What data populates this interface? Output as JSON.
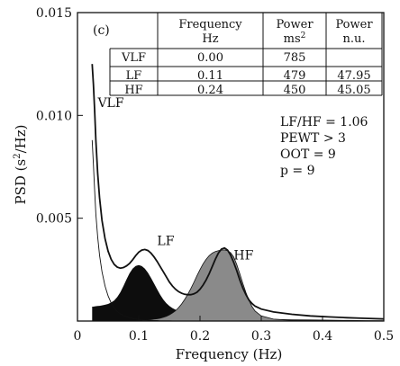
{
  "chart_data": {
    "type": "area",
    "panel_label": "(c)",
    "xlabel": "Frequency (Hz)",
    "ylabel": "PSD (s",
    "ylabel_sup": "2",
    "ylabel_tail": "/Hz)",
    "xlim": [
      0,
      0.5
    ],
    "ylim": [
      0,
      0.015
    ],
    "x_ticks": [
      {
        "value": 0,
        "label": "0"
      },
      {
        "value": 0.1,
        "label": "0.1"
      },
      {
        "value": 0.2,
        "label": "0.2"
      },
      {
        "value": 0.3,
        "label": "0.3"
      },
      {
        "value": 0.4,
        "label": "0.4"
      },
      {
        "value": 0.5,
        "label": "0.5"
      }
    ],
    "y_ticks": [
      {
        "value": 0.005,
        "label": "0.005"
      },
      {
        "value": 0.01,
        "label": "0.010"
      },
      {
        "value": 0.015,
        "label": "0.015"
      }
    ],
    "x": [
      0.024,
      0.026,
      0.028,
      0.03,
      0.033,
      0.036,
      0.04,
      0.045,
      0.05,
      0.055,
      0.06,
      0.065,
      0.07,
      0.075,
      0.08,
      0.085,
      0.09,
      0.095,
      0.1,
      0.105,
      0.11,
      0.115,
      0.12,
      0.125,
      0.13,
      0.135,
      0.14,
      0.145,
      0.15,
      0.155,
      0.16,
      0.165,
      0.17,
      0.175,
      0.18,
      0.185,
      0.19,
      0.195,
      0.2,
      0.205,
      0.21,
      0.215,
      0.22,
      0.225,
      0.23,
      0.235,
      0.24,
      0.245,
      0.25,
      0.255,
      0.26,
      0.265,
      0.27,
      0.275,
      0.28,
      0.285,
      0.29,
      0.3,
      0.32,
      0.35,
      0.38,
      0.41,
      0.44,
      0.47,
      0.5
    ],
    "series": [
      {
        "role": "total",
        "values": [
          0.0125,
          0.0115,
          0.0103,
          0.0088,
          0.0072,
          0.006,
          0.0049,
          0.004,
          0.0034,
          0.003,
          0.00275,
          0.00262,
          0.00257,
          0.0026,
          0.00268,
          0.0028,
          0.00298,
          0.00318,
          0.00335,
          0.00345,
          0.00348,
          0.00343,
          0.0033,
          0.00312,
          0.0029,
          0.00265,
          0.0024,
          0.00215,
          0.0019,
          0.0017,
          0.00155,
          0.00143,
          0.00135,
          0.0013,
          0.00128,
          0.00128,
          0.00132,
          0.0014,
          0.00155,
          0.00175,
          0.002,
          0.0023,
          0.00265,
          0.003,
          0.0033,
          0.0035,
          0.00355,
          0.00345,
          0.0032,
          0.00285,
          0.00245,
          0.002,
          0.0016,
          0.00128,
          0.00102,
          0.00085,
          0.00072,
          0.00058,
          0.00044,
          0.00033,
          0.00025,
          0.0002,
          0.00016,
          0.00013,
          0.0001
        ]
      },
      {
        "role": "VLF",
        "values": [
          0.0088,
          0.0076,
          0.0064,
          0.0052,
          0.0041,
          0.0032,
          0.0024,
          0.0017,
          0.00122,
          0.00088,
          0.00064,
          0.00047,
          0.00035,
          0.00027,
          0.00021,
          0.00016,
          0.00013,
          0.0001,
          8e-05,
          6e-05,
          5e-05,
          4e-05,
          3e-05,
          2e-05,
          2e-05,
          1e-05,
          1e-05,
          1e-05,
          1e-05,
          0,
          0,
          0,
          0,
          0,
          0,
          0,
          0,
          0,
          0,
          0,
          0,
          0,
          0,
          0,
          0,
          0,
          0,
          0,
          0,
          0,
          0,
          0,
          0,
          0,
          0,
          0,
          0,
          0,
          0,
          0,
          0,
          0,
          0,
          0,
          0
        ]
      },
      {
        "role": "LF",
        "values": [
          0.0007,
          0.0007,
          0.00071,
          0.00072,
          0.00073,
          0.00074,
          0.00076,
          0.00079,
          0.00083,
          0.0009,
          0.001,
          0.00117,
          0.0014,
          0.0017,
          0.00202,
          0.00232,
          0.00255,
          0.00268,
          0.00272,
          0.00267,
          0.00255,
          0.00235,
          0.0021,
          0.00183,
          0.00155,
          0.00128,
          0.00105,
          0.00087,
          0.00073,
          0.00063,
          0.00055,
          0.0005,
          0.00046,
          0.00043,
          0.00041,
          0.00039,
          0.00037,
          0.00036,
          0.00034,
          0.00032,
          0.0003,
          0.00028,
          0.00026,
          0.00024,
          0.00022,
          0.00021,
          0.0002,
          0.00019,
          0.00018,
          0.00017,
          0.00016,
          0.00015,
          0.00014,
          0.00014,
          0.00013,
          0.00012,
          0.00012,
          0.00011,
          0.0001,
          8e-05,
          7e-05,
          6e-05,
          5e-05,
          4e-05,
          3e-05
        ]
      },
      {
        "role": "HF",
        "values": [
          0,
          0,
          0,
          0,
          0,
          0,
          0,
          0,
          0,
          0,
          0,
          0,
          0,
          0,
          0,
          0,
          1e-05,
          2e-05,
          3e-05,
          4e-05,
          5e-05,
          6e-05,
          7e-05,
          9e-05,
          0.00011,
          0.00014,
          0.00018,
          0.00023,
          0.0003,
          0.00039,
          0.0005,
          0.00065,
          0.00083,
          0.00105,
          0.0013,
          0.00158,
          0.00188,
          0.0022,
          0.0025,
          0.00278,
          0.003,
          0.00318,
          0.0033,
          0.00338,
          0.00342,
          0.00345,
          0.00346,
          0.00342,
          0.00332,
          0.00312,
          0.00275,
          0.0023,
          0.00182,
          0.00138,
          0.001,
          0.0007,
          0.00048,
          0.00025,
          9e-05,
          3e-05,
          1e-05,
          0,
          0,
          0,
          0
        ]
      }
    ],
    "curve_labels": [
      {
        "text": "VLF",
        "x": 0.033,
        "y": 0.0104
      },
      {
        "text": "LF",
        "x": 0.13,
        "y": 0.0037
      },
      {
        "text": "HF",
        "x": 0.255,
        "y": 0.003
      }
    ],
    "annotations": [
      "LF/HF = 1.06",
      "PEWT > 3",
      "OOT = 9",
      "p = 9"
    ],
    "table": {
      "headers": [
        {
          "line1": "",
          "line2": ""
        },
        {
          "line1": "Frequency",
          "line2": "Hz"
        },
        {
          "line1": "Power",
          "line2": "ms",
          "sup": "2"
        },
        {
          "line1": "Power",
          "line2": "n.u."
        }
      ],
      "rows": [
        [
          "VLF",
          "0.00",
          "785",
          ""
        ],
        [
          "LF",
          "0.11",
          "479",
          "47.95"
        ],
        [
          "HF",
          "0.24",
          "450",
          "45.05"
        ]
      ]
    }
  }
}
